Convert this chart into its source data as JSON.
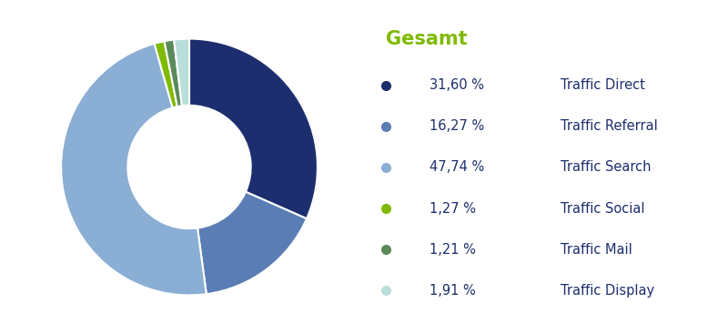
{
  "title": "Gesamt",
  "title_color": "#7FBA00",
  "slices": [
    31.6,
    16.27,
    47.74,
    1.27,
    1.21,
    1.91
  ],
  "colors": [
    "#1C2E6E",
    "#5B7DB5",
    "#8AAED4",
    "#7FBA00",
    "#5A8A5A",
    "#BADED9"
  ],
  "labels": [
    "31,60 %",
    "16,27 %",
    "47,74 %",
    "1,27 %",
    "1,21 %",
    "1,91 %"
  ],
  "descriptions": [
    "Traffic Direct",
    "Traffic Referral",
    "Traffic Search",
    "Traffic Social",
    "Traffic Mail",
    "Traffic Display"
  ],
  "legend_text_color": "#1C2E6E",
  "background_color": "#FFFFFF",
  "startangle": 90
}
